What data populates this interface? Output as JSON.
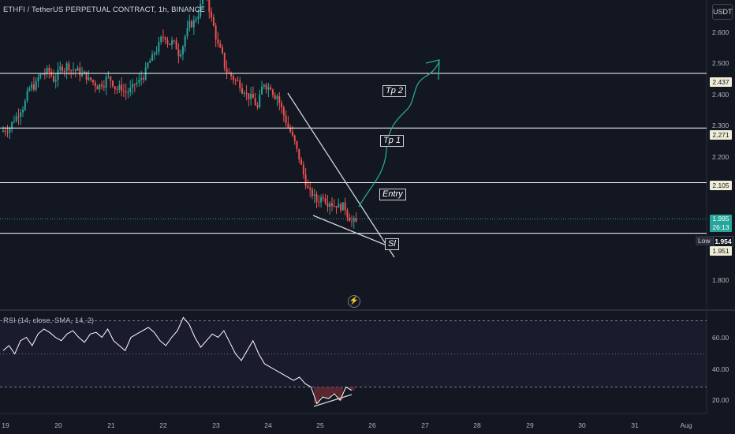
{
  "header": {
    "title": "ETHFI / TetherUS PERPETUAL CONTRACT, 1h, BINANCE",
    "currency": "USDT"
  },
  "colors": {
    "background": "#131722",
    "up": "#26a69a",
    "down": "#ef5350",
    "line": "#ffffff",
    "arrow": "#26a69a",
    "rsi_line": "#ffffff",
    "rsi_band": "#7e57c2",
    "rsi_fill": "#6d2a33"
  },
  "chart_data": [
    {
      "type": "candlestick",
      "title": "ETHFI / TetherUS PERPETUAL CONTRACT, 1h, BINANCE",
      "x_labels": [
        "19",
        "20",
        "21",
        "22",
        "23",
        "24",
        "25",
        "26",
        "27",
        "28",
        "29",
        "30",
        "31",
        "Aug"
      ],
      "ylim": [
        1.72,
        2.66
      ],
      "y_ticks": [
        "2.600",
        "2.500",
        "2.400",
        "2.300",
        "2.200",
        "1.800"
      ],
      "approx_closes": [
        2.27,
        2.3,
        2.33,
        2.37,
        2.4,
        2.43,
        2.44,
        2.42,
        2.45,
        2.46,
        2.45,
        2.44,
        2.43,
        2.41,
        2.4,
        2.42,
        2.41,
        2.39,
        2.38,
        2.39,
        2.41,
        2.44,
        2.48,
        2.52,
        2.55,
        2.53,
        2.5,
        2.55,
        2.59,
        2.62,
        2.7,
        2.6,
        2.52,
        2.46,
        2.43,
        2.41,
        2.39,
        2.36,
        2.33,
        2.41,
        2.4,
        2.37,
        2.31,
        2.26,
        2.2,
        2.13,
        2.07,
        2.05,
        2.07,
        2.05,
        2.04,
        2.03,
        2.0,
        1.98
      ],
      "levels": [
        {
          "label": "Tp 2",
          "value": "2.437"
        },
        {
          "label": "Tp 1",
          "value": "2.271"
        },
        {
          "label": "Entry",
          "value": "2.105"
        },
        {
          "label": "Sl",
          "value": "1.951"
        }
      ],
      "current_price": "1.995",
      "countdown": "26:13",
      "low_label": "Low",
      "low_value": "1.954"
    },
    {
      "type": "line",
      "title": "RSI (14, close, SMA, 14, 2)",
      "ylim": [
        15,
        75
      ],
      "y_ticks": [
        "60.00",
        "40.00",
        "20.00"
      ],
      "bands": [
        70,
        50,
        30
      ],
      "approx_values": [
        52,
        55,
        50,
        58,
        60,
        55,
        62,
        65,
        63,
        60,
        58,
        62,
        64,
        60,
        57,
        62,
        63,
        60,
        65,
        58,
        55,
        52,
        60,
        62,
        64,
        66,
        63,
        58,
        55,
        60,
        64,
        72,
        68,
        60,
        54,
        58,
        62,
        60,
        64,
        57,
        50,
        46,
        52,
        58,
        50,
        44,
        42,
        40,
        38,
        36,
        34,
        36,
        32,
        30,
        20,
        24,
        23,
        26,
        22,
        30,
        28
      ]
    }
  ]
}
